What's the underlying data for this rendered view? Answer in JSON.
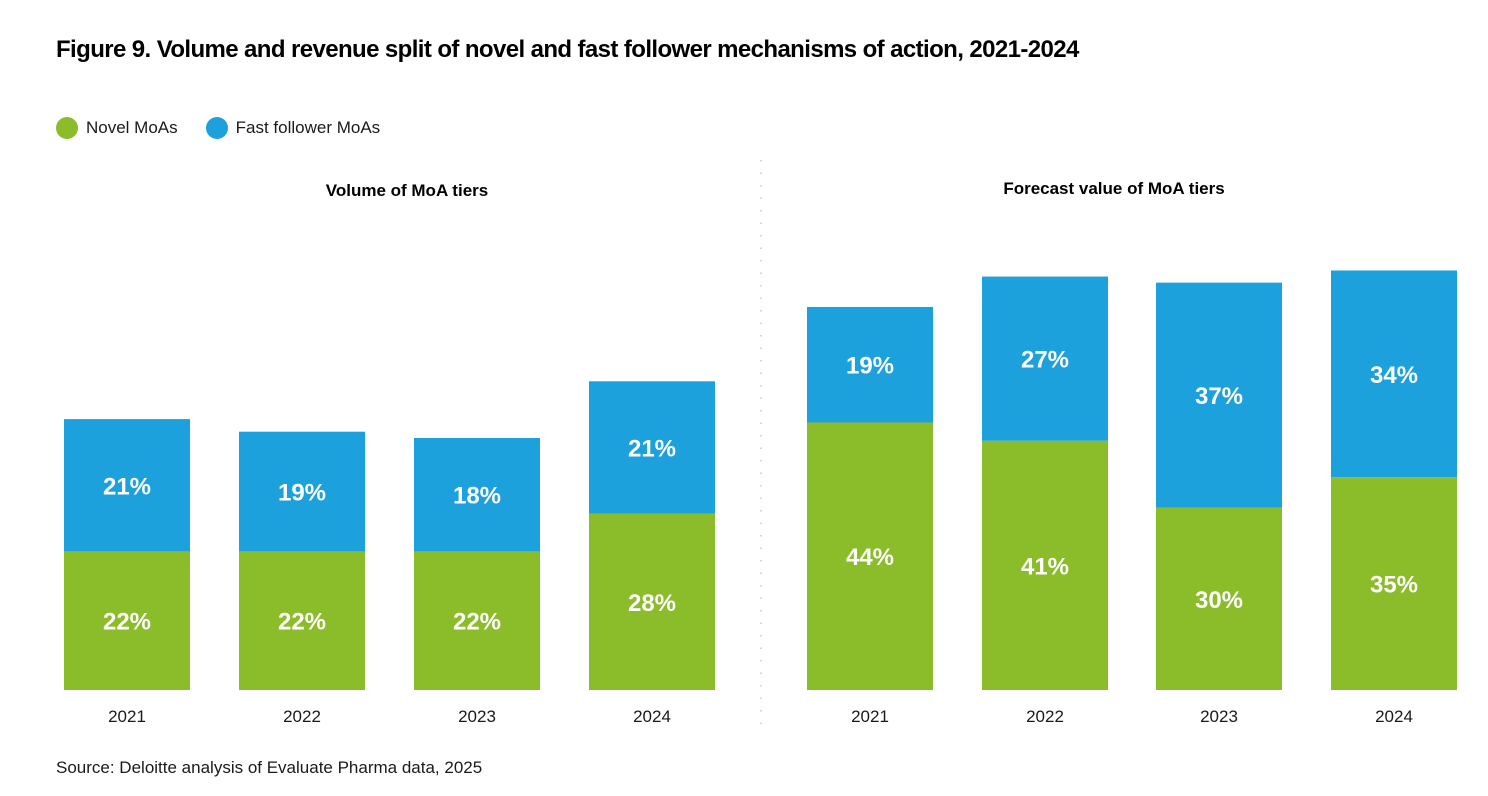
{
  "title": "Figure 9. Volume and revenue split of novel and fast follower mechanisms of action, 2021-2024",
  "legend": [
    {
      "label": "Novel MoAs",
      "color": "#8bbc29"
    },
    {
      "label": "Fast follower MoAs",
      "color": "#1ca1dc"
    }
  ],
  "source": "Source: Deloitte analysis of Evaluate Pharma data, 2025",
  "chart_data": [
    {
      "type": "bar",
      "stacked": true,
      "title": "Volume of MoA tiers",
      "categories": [
        "2021",
        "2022",
        "2023",
        "2024"
      ],
      "series": [
        {
          "name": "Novel MoAs",
          "color": "#8bbc29",
          "values": [
            22,
            22,
            22,
            28
          ]
        },
        {
          "name": "Fast follower MoAs",
          "color": "#1ca1dc",
          "values": [
            21,
            19,
            18,
            21
          ]
        }
      ],
      "unit": "%",
      "xlabel": "",
      "ylabel": "",
      "grid": false,
      "ylim": [
        0,
        70
      ]
    },
    {
      "type": "bar",
      "stacked": true,
      "title": "Forecast value of MoA tiers",
      "categories": [
        "2021",
        "2022",
        "2023",
        "2024"
      ],
      "series": [
        {
          "name": "Novel MoAs",
          "color": "#8bbc29",
          "values": [
            44,
            41,
            30,
            35
          ]
        },
        {
          "name": "Fast follower MoAs",
          "color": "#1ca1dc",
          "values": [
            19,
            27,
            37,
            34
          ]
        }
      ],
      "unit": "%",
      "xlabel": "",
      "ylabel": "",
      "grid": false,
      "ylim": [
        0,
        70
      ]
    }
  ]
}
